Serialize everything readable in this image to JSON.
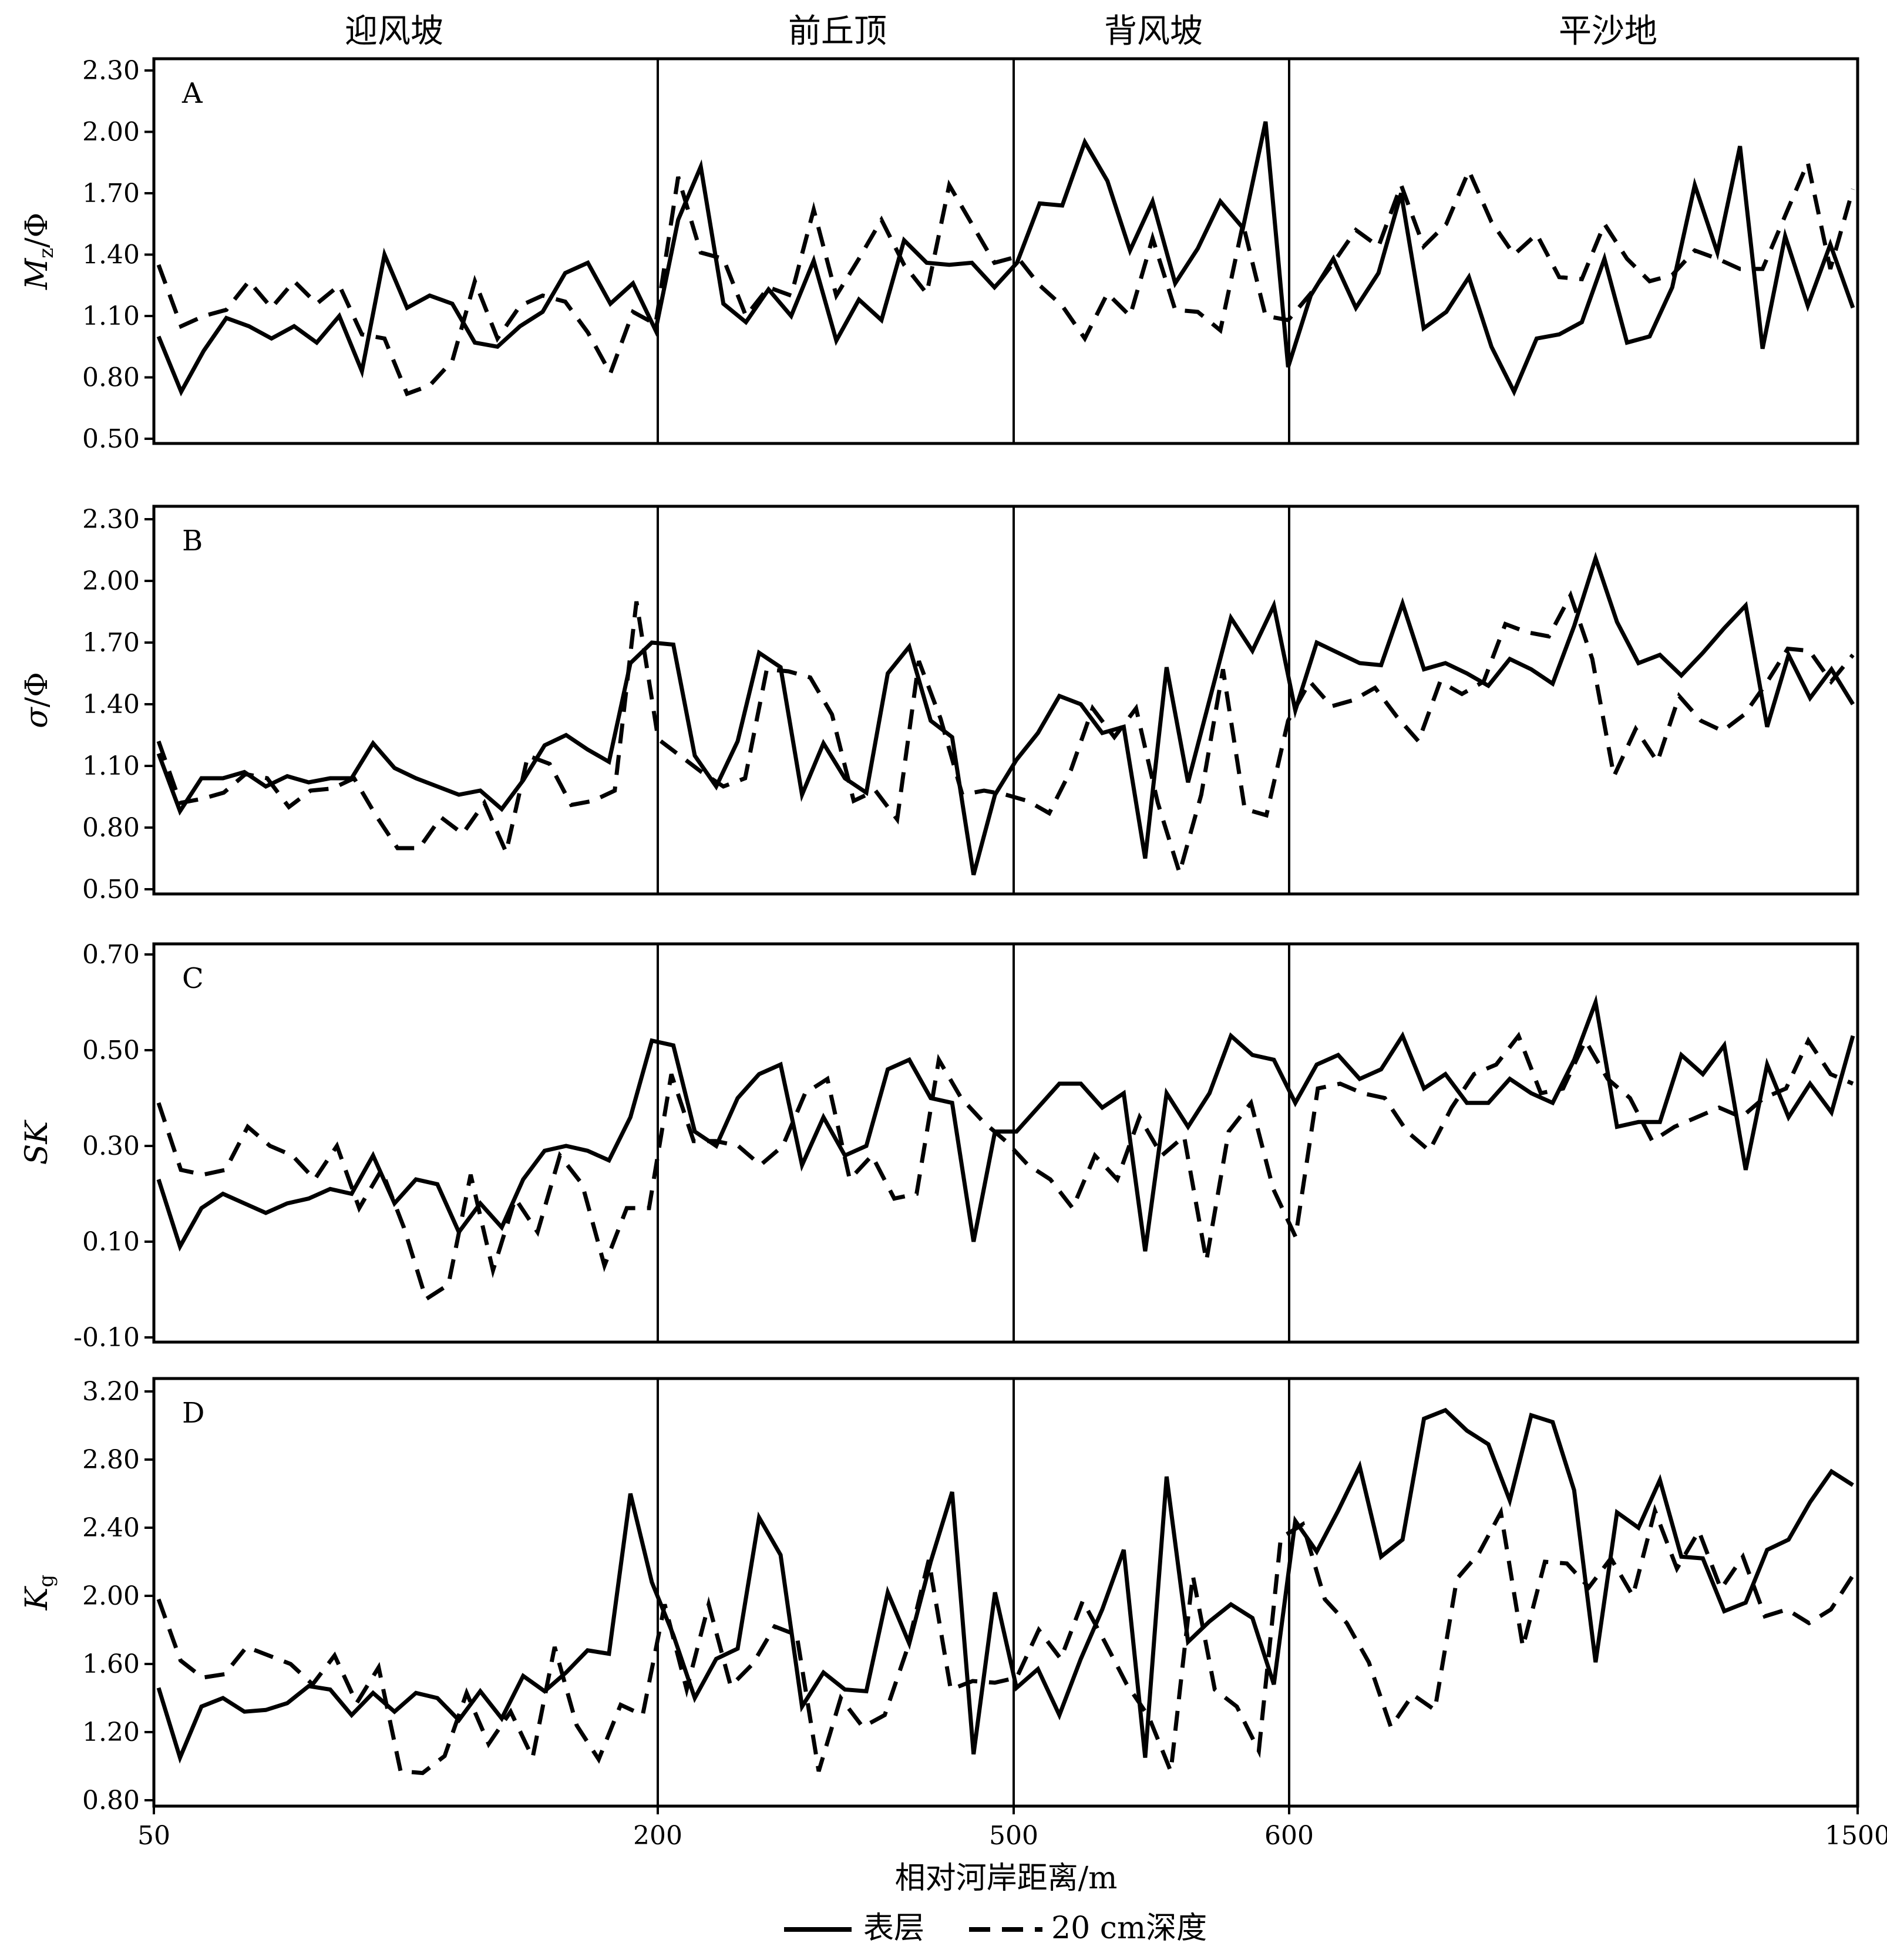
{
  "chart_data": {
    "type": "line",
    "zones": [
      "迎风坡",
      "前丘顶",
      "背风坡",
      "平沙地"
    ],
    "x_ticks": [
      "50",
      "200",
      "500",
      "600",
      "1500"
    ],
    "xlabel": "相对河岸距离/m",
    "legend": {
      "placement": "bottom-center",
      "entries": [
        "表层",
        "20 cm深度"
      ]
    },
    "series_style": {
      "表层": "solid",
      "20 cm深度": "dashed"
    },
    "color": "#000000",
    "panels": [
      {
        "letter": "A",
        "ylabel": "Mz/Φ",
        "ylabel_main": "M",
        "ylabel_sub": "z",
        "ylabel_rest": "/Φ",
        "ylim": [
          0.5,
          2.3
        ],
        "y_ticks": [
          "0.50",
          "0.80",
          "1.10",
          "1.40",
          "1.70",
          "2.00",
          "2.30"
        ],
        "series": [
          {
            "name": "表层",
            "values": [
              1.0,
              0.73,
              0.93,
              1.09,
              1.05,
              0.99,
              1.05,
              0.97,
              1.1,
              0.83,
              1.4,
              1.14,
              1.2,
              1.16,
              0.97,
              0.95,
              1.05,
              1.12,
              1.31,
              1.36,
              1.16,
              1.26,
              1.03,
              1.57,
              1.83,
              1.16,
              1.07,
              1.23,
              1.1,
              1.37,
              0.98,
              1.18,
              1.08,
              1.47,
              1.36,
              1.35,
              1.36,
              1.24,
              1.36,
              1.65,
              1.64,
              1.95,
              1.76,
              1.42,
              1.66,
              1.26,
              1.43,
              1.66,
              1.53,
              2.05,
              0.85,
              1.2,
              1.38,
              1.14,
              1.31,
              1.7,
              1.04,
              1.12,
              1.29,
              0.95,
              0.73,
              0.99,
              1.01,
              1.07,
              1.38,
              0.97,
              1.0,
              1.24,
              1.74,
              1.41,
              1.93,
              0.94,
              1.49,
              1.15,
              1.45,
              1.14
            ]
          },
          {
            "name": "20 cm深度",
            "values": [
              1.35,
              1.05,
              1.1,
              1.13,
              1.27,
              1.14,
              1.27,
              1.16,
              1.25,
              1.01,
              0.99,
              0.72,
              0.76,
              0.88,
              1.27,
              0.99,
              1.15,
              1.2,
              1.17,
              1.02,
              0.82,
              1.12,
              1.06,
              1.78,
              1.41,
              1.38,
              1.1,
              1.24,
              1.2,
              1.62,
              1.2,
              1.38,
              1.57,
              1.35,
              1.21,
              1.74,
              1.55,
              1.36,
              1.39,
              1.25,
              1.15,
              0.99,
              1.21,
              1.1,
              1.48,
              1.13,
              1.12,
              1.03,
              1.55,
              1.1,
              1.08,
              1.21,
              1.36,
              1.52,
              1.44,
              1.74,
              1.44,
              1.55,
              1.81,
              1.56,
              1.4,
              1.5,
              1.29,
              1.28,
              1.55,
              1.38,
              1.27,
              1.3,
              1.42,
              1.38,
              1.33,
              1.33,
              1.59,
              1.85,
              1.33,
              1.72
            ]
          }
        ]
      },
      {
        "letter": "B",
        "ylabel": "σ/Φ",
        "ylabel_main": "σ",
        "ylabel_sub": "",
        "ylabel_rest": "/Φ",
        "ylim": [
          0.5,
          2.3
        ],
        "y_ticks": [
          "0.50",
          "0.80",
          "1.10",
          "1.40",
          "1.70",
          "2.00",
          "2.30"
        ],
        "series": [
          {
            "name": "表层",
            "values": [
              1.16,
              0.88,
              1.04,
              1.04,
              1.07,
              1.0,
              1.05,
              1.02,
              1.04,
              1.04,
              1.21,
              1.09,
              1.04,
              1.0,
              0.96,
              0.98,
              0.89,
              1.03,
              1.2,
              1.25,
              1.18,
              1.12,
              1.6,
              1.7,
              1.69,
              1.15,
              1.0,
              1.22,
              1.65,
              1.58,
              0.96,
              1.21,
              1.04,
              0.97,
              1.55,
              1.68,
              1.32,
              1.24,
              0.57,
              0.96,
              1.13,
              1.26,
              1.44,
              1.4,
              1.26,
              1.29,
              0.65,
              1.58,
              1.02,
              1.42,
              1.82,
              1.66,
              1.88,
              1.37,
              1.7,
              1.65,
              1.6,
              1.59,
              1.89,
              1.57,
              1.6,
              1.55,
              1.49,
              1.62,
              1.57,
              1.5,
              1.78,
              2.11,
              1.8,
              1.6,
              1.64,
              1.54,
              1.65,
              1.77,
              1.88,
              1.29,
              1.64,
              1.43,
              1.57,
              1.4
            ]
          },
          {
            "name": "20 cm深度",
            "values": [
              1.22,
              0.92,
              0.94,
              0.97,
              1.06,
              1.04,
              0.9,
              0.98,
              0.99,
              1.04,
              0.86,
              0.7,
              0.7,
              0.85,
              0.77,
              0.92,
              0.68,
              1.15,
              1.11,
              0.91,
              0.93,
              0.98,
              1.9,
              1.23,
              1.15,
              1.07,
              1.0,
              1.04,
              1.57,
              1.56,
              1.53,
              1.35,
              0.93,
              0.98,
              0.84,
              1.61,
              1.33,
              0.96,
              0.98,
              0.96,
              0.93,
              0.87,
              1.08,
              1.38,
              1.24,
              1.38,
              0.92,
              0.58,
              0.96,
              1.57,
              0.89,
              0.86,
              1.32,
              1.51,
              1.39,
              1.42,
              1.48,
              1.34,
              1.22,
              1.51,
              1.45,
              1.51,
              1.79,
              1.75,
              1.73,
              1.93,
              1.62,
              1.05,
              1.28,
              1.12,
              1.44,
              1.32,
              1.27,
              1.35,
              1.5,
              1.67,
              1.66,
              1.51,
              1.64
            ]
          }
        ]
      },
      {
        "letter": "C",
        "ylabel": "SK",
        "ylabel_main": "SK",
        "ylabel_sub": "",
        "ylabel_rest": "",
        "ylim": [
          -0.1,
          0.7
        ],
        "y_ticks": [
          "-0.10",
          "0.10",
          "0.30",
          "0.50",
          "0.70"
        ],
        "series": [
          {
            "name": "表层",
            "values": [
              0.23,
              0.09,
              0.17,
              0.2,
              0.18,
              0.16,
              0.18,
              0.19,
              0.21,
              0.2,
              0.28,
              0.18,
              0.23,
              0.22,
              0.12,
              0.18,
              0.13,
              0.23,
              0.29,
              0.3,
              0.29,
              0.27,
              0.36,
              0.52,
              0.51,
              0.33,
              0.3,
              0.4,
              0.45,
              0.47,
              0.26,
              0.36,
              0.28,
              0.3,
              0.46,
              0.48,
              0.4,
              0.39,
              0.1,
              0.33,
              0.33,
              0.38,
              0.43,
              0.43,
              0.38,
              0.41,
              0.08,
              0.41,
              0.34,
              0.41,
              0.53,
              0.49,
              0.48,
              0.39,
              0.47,
              0.49,
              0.44,
              0.46,
              0.53,
              0.42,
              0.45,
              0.39,
              0.39,
              0.44,
              0.41,
              0.39,
              0.48,
              0.6,
              0.34,
              0.35,
              0.35,
              0.49,
              0.45,
              0.51,
              0.25,
              0.47,
              0.36,
              0.43,
              0.37,
              0.53
            ]
          },
          {
            "name": "20 cm深度",
            "values": [
              0.39,
              0.25,
              0.24,
              0.25,
              0.34,
              0.3,
              0.28,
              0.23,
              0.3,
              0.17,
              0.25,
              0.13,
              -0.02,
              0.01,
              0.24,
              0.04,
              0.19,
              0.12,
              0.28,
              0.22,
              0.05,
              0.17,
              0.17,
              0.45,
              0.31,
              0.31,
              0.3,
              0.26,
              0.3,
              0.41,
              0.44,
              0.23,
              0.28,
              0.19,
              0.2,
              0.48,
              0.4,
              0.35,
              0.31,
              0.26,
              0.23,
              0.17,
              0.28,
              0.23,
              0.36,
              0.28,
              0.32,
              0.06,
              0.33,
              0.39,
              0.21,
              0.11,
              0.42,
              0.43,
              0.41,
              0.4,
              0.33,
              0.29,
              0.38,
              0.45,
              0.47,
              0.53,
              0.41,
              0.42,
              0.52,
              0.44,
              0.4,
              0.31,
              0.34,
              0.36,
              0.38,
              0.36,
              0.4,
              0.42,
              0.52,
              0.45,
              0.43
            ]
          }
        ]
      },
      {
        "letter": "D",
        "ylabel": "Kg",
        "ylabel_main": "K",
        "ylabel_sub": "g",
        "ylabel_rest": "",
        "ylim": [
          0.8,
          3.2
        ],
        "y_ticks": [
          "0.80",
          "1.20",
          "1.60",
          "2.00",
          "2.40",
          "2.80",
          "3.20"
        ],
        "series": [
          {
            "name": "表层",
            "values": [
              1.46,
              1.05,
              1.35,
              1.4,
              1.32,
              1.33,
              1.37,
              1.47,
              1.45,
              1.3,
              1.43,
              1.32,
              1.43,
              1.4,
              1.27,
              1.44,
              1.28,
              1.53,
              1.44,
              1.55,
              1.68,
              1.66,
              2.6,
              2.08,
              1.77,
              1.4,
              1.63,
              1.69,
              2.46,
              2.24,
              1.35,
              1.55,
              1.45,
              1.44,
              2.02,
              1.72,
              2.2,
              2.61,
              1.07,
              2.02,
              1.46,
              1.57,
              1.3,
              1.63,
              1.92,
              2.27,
              1.05,
              2.7,
              1.73,
              1.85,
              1.95,
              1.87,
              1.48,
              2.44,
              2.26,
              2.5,
              2.76,
              2.23,
              2.33,
              3.04,
              3.09,
              2.97,
              2.89,
              2.56,
              3.06,
              3.02,
              2.62,
              1.61,
              2.49,
              2.4,
              2.68,
              2.23,
              2.22,
              1.91,
              1.96,
              2.27,
              2.33,
              2.55,
              2.73,
              2.65
            ]
          },
          {
            "name": "20 cm深度",
            "values": [
              1.98,
              1.62,
              1.52,
              1.54,
              1.7,
              1.65,
              1.6,
              1.48,
              1.65,
              1.37,
              1.58,
              0.97,
              0.96,
              1.06,
              1.43,
              1.13,
              1.32,
              1.05,
              1.7,
              1.24,
              1.04,
              1.36,
              1.3,
              1.95,
              1.45,
              1.95,
              1.47,
              1.6,
              1.82,
              1.77,
              0.97,
              1.4,
              1.23,
              1.3,
              1.68,
              2.21,
              1.45,
              1.5,
              1.49,
              1.52,
              1.8,
              1.63,
              1.97,
              1.73,
              1.48,
              1.29,
              0.97,
              2.12,
              1.45,
              1.35,
              1.09,
              2.34,
              2.42,
              1.98,
              1.84,
              1.61,
              1.23,
              1.42,
              1.33,
              2.1,
              2.25,
              2.49,
              1.7,
              2.2,
              2.19,
              2.05,
              2.22,
              2.0,
              2.5,
              2.16,
              2.38,
              2.04,
              2.23,
              1.88,
              1.92,
              1.84,
              1.92,
              2.12
            ]
          }
        ]
      }
    ]
  }
}
